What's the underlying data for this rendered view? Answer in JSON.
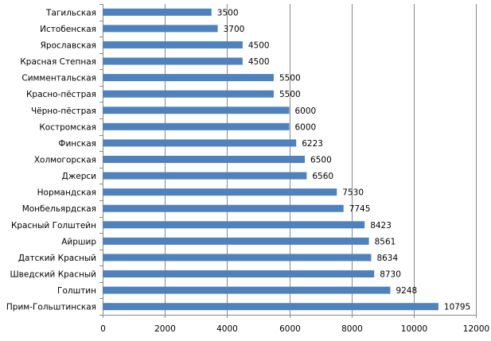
{
  "chart_data": {
    "type": "bar",
    "orientation": "horizontal",
    "categories": [
      "Тагильская",
      "Истобенская",
      "Ярославская",
      "Красная Степная",
      "Симментальская",
      "Красно-пёстрая",
      "Чёрно-пёстрая",
      "Костромская",
      "Финская",
      "Холмогорская",
      "Джерси",
      "Нормандская",
      "Монбельярдская",
      "Красный Голштейн",
      "Айршир",
      "Датский Красный",
      "Шведский Красный",
      "Голштин",
      "Прим-Гольштинская"
    ],
    "values": [
      3500,
      3700,
      4500,
      4500,
      5500,
      5500,
      6000,
      6000,
      6223,
      6500,
      6560,
      7530,
      7745,
      8423,
      8561,
      8634,
      8730,
      9248,
      10795
    ],
    "data_labels": [
      "3500",
      "3700",
      "4500",
      "4500",
      "5500",
      "5500",
      "6000",
      "6000",
      "6223",
      "6500",
      "6560",
      "7530",
      "7745",
      "8423",
      "8561",
      "8634",
      "8730",
      "9248",
      "10795"
    ],
    "xticks": [
      "0",
      "2000",
      "4000",
      "6000",
      "8000",
      "10000",
      "12000"
    ],
    "xlim": [
      0,
      12000
    ],
    "grid": true,
    "bar_color": "#4f81bd",
    "grid_color": "#888888"
  }
}
